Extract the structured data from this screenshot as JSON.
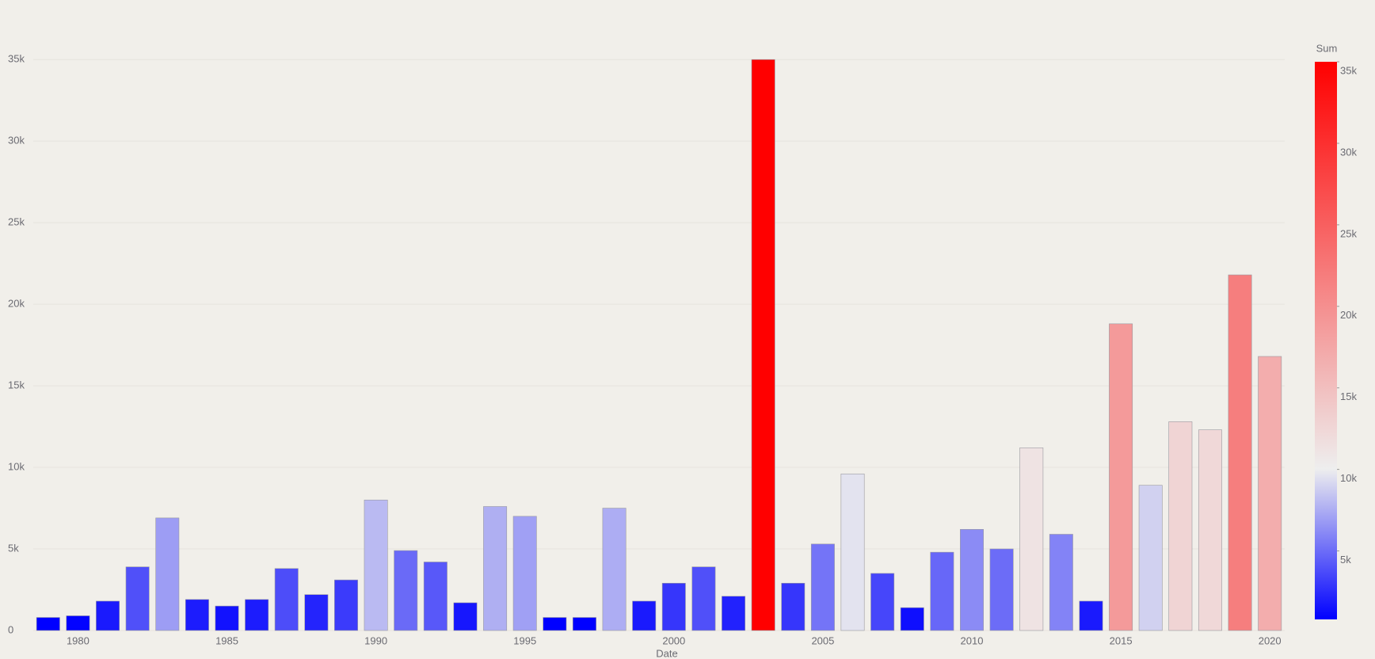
{
  "chart_data": {
    "type": "bar",
    "x_label": "Date",
    "colorbar_title": "Sum",
    "x": [
      1979,
      1980,
      1981,
      1982,
      1983,
      1984,
      1985,
      1986,
      1987,
      1988,
      1989,
      1990,
      1991,
      1992,
      1993,
      1994,
      1995,
      1996,
      1997,
      1998,
      1999,
      2000,
      2001,
      2002,
      2003,
      2004,
      2005,
      2006,
      2007,
      2008,
      2009,
      2010,
      2011,
      2012,
      2013,
      2014,
      2015,
      2016,
      2017,
      2018,
      2019,
      2020
    ],
    "values": [
      800,
      900,
      1800,
      3900,
      6900,
      1900,
      1500,
      1900,
      3800,
      2200,
      3100,
      8000,
      4900,
      4200,
      1700,
      7600,
      7000,
      800,
      800,
      7500,
      1800,
      2900,
      3900,
      2100,
      35000,
      2900,
      5300,
      9600,
      3500,
      1400,
      4800,
      6200,
      5000,
      11200,
      5900,
      1800,
      18800,
      8900,
      12800,
      12300,
      21800,
      16800
    ],
    "xlim": [
      1978.5,
      2020.5
    ],
    "xticks": [
      1980,
      1985,
      1990,
      1995,
      2000,
      2005,
      2010,
      2015,
      2020
    ],
    "ylim": [
      0,
      37000
    ],
    "yticks": [
      0,
      {
        "value": 5000,
        "label": "5k"
      },
      {
        "value": 10000,
        "label": "10k"
      },
      {
        "value": 15000,
        "label": "15k"
      },
      {
        "value": 20000,
        "label": "20k"
      },
      {
        "value": 25000,
        "label": "25k"
      },
      {
        "value": 30000,
        "label": "30k"
      },
      {
        "value": 35000,
        "label": "35k"
      }
    ],
    "clim": [
      800,
      35000
    ],
    "cticks": [
      {
        "value": 5000,
        "label": "5k"
      },
      {
        "value": 10000,
        "label": "10k"
      },
      {
        "value": 15000,
        "label": "15k"
      },
      {
        "value": 20000,
        "label": "20k"
      },
      {
        "value": 25000,
        "label": "25k"
      },
      {
        "value": 30000,
        "label": "30k"
      },
      {
        "value": 35000,
        "label": "35k"
      }
    ],
    "colorscale": [
      [
        0,
        "#0000ff"
      ],
      [
        0.27,
        "#eeeeee"
      ],
      [
        1,
        "#ff0000"
      ]
    ],
    "grid": true
  }
}
